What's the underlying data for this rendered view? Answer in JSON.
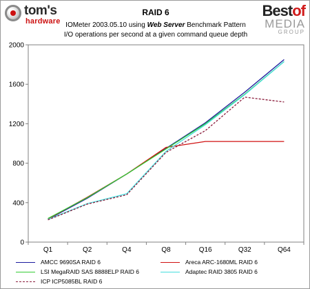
{
  "logo_left": {
    "brand": "tom's",
    "sub": "hardware"
  },
  "logo_right": {
    "line1": "Best",
    "line1_accent": "of",
    "line2": "MEDIA",
    "line3": "GROUP"
  },
  "header": {
    "title": "RAID 6",
    "subtitle_prefix": "IOMeter 2003.05.10 using ",
    "subtitle_emph": "Web Server",
    "subtitle_suffix": " Benchmark Pattern",
    "subtitle2": "I/O operations per second at a given command queue depth"
  },
  "colors": {
    "amcc": "#1a1a9e",
    "areca": "#d01010",
    "lsi": "#33cc33",
    "adaptec": "#44dddd",
    "icp": "#8a1a3a"
  },
  "chart_data": {
    "type": "line",
    "categories": [
      "Q1",
      "Q2",
      "Q4",
      "Q8",
      "Q16",
      "Q32",
      "Q64"
    ],
    "ylim": [
      0,
      2000
    ],
    "yticks": [
      0,
      400,
      800,
      1200,
      1600,
      2000
    ],
    "xlabel": "",
    "ylabel": "",
    "grid": false,
    "legend_position": "bottom",
    "series": [
      {
        "name": "AMCC 9690SA RAID 6",
        "color_key": "amcc",
        "dash": "solid",
        "values": [
          230,
          445,
          690,
          950,
          1210,
          1520,
          1850
        ]
      },
      {
        "name": "Areca ARC-1680ML RAID 6",
        "color_key": "areca",
        "dash": "solid",
        "values": [
          235,
          455,
          690,
          960,
          1020,
          1020,
          1020
        ]
      },
      {
        "name": "LSI MegaRAID SAS 8888ELP RAID 6",
        "color_key": "lsi",
        "dash": "solid",
        "values": [
          240,
          450,
          690,
          945,
          1200,
          1500,
          1830
        ]
      },
      {
        "name": "Adaptec RAID 3805 RAID 6",
        "color_key": "adaptec",
        "dash": "solid",
        "values": [
          230,
          390,
          490,
          920,
          1190,
          1495,
          1830
        ]
      },
      {
        "name": "ICP ICP5085BL RAID 6",
        "color_key": "icp",
        "dash": "dashed",
        "values": [
          225,
          385,
          480,
          910,
          1130,
          1470,
          1420
        ]
      }
    ]
  }
}
